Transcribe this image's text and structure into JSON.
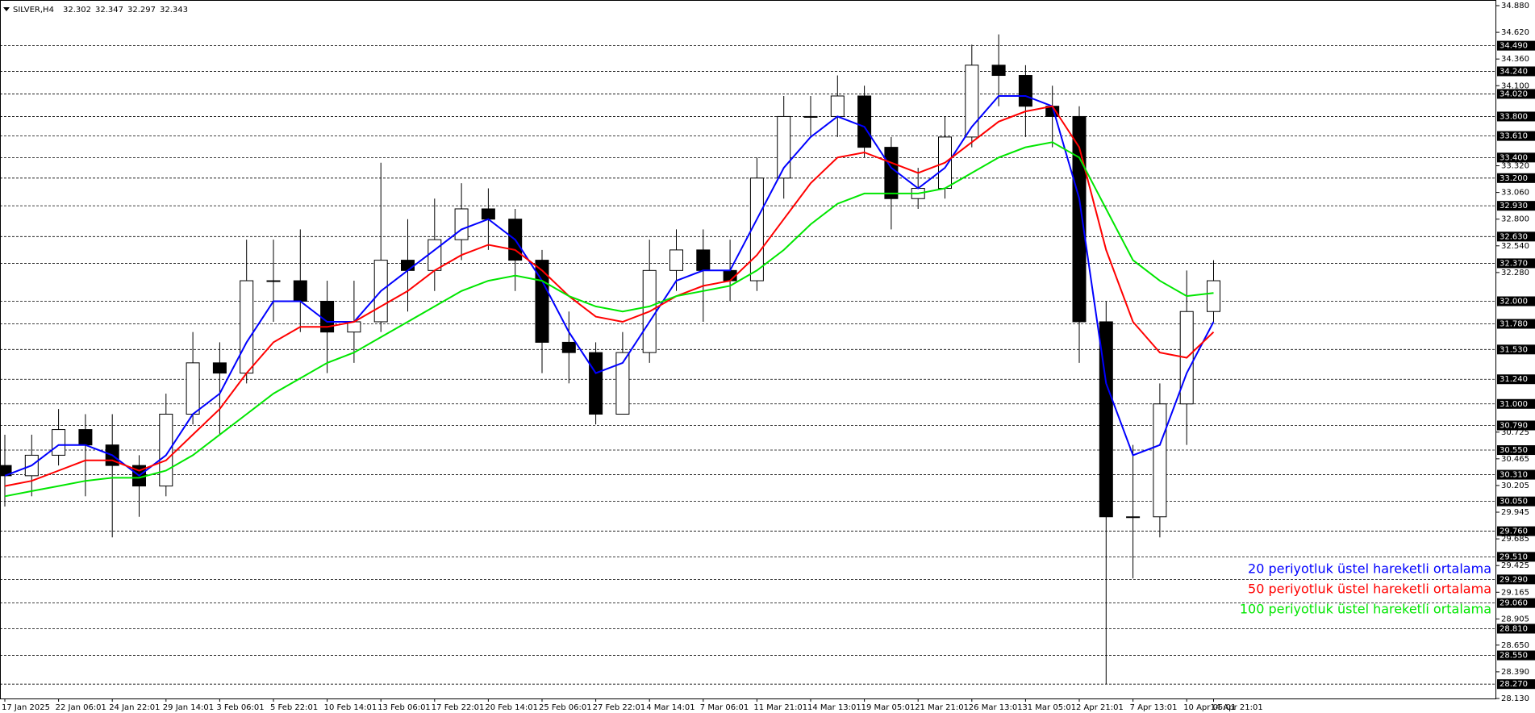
{
  "chart_data": {
    "type": "candlestick",
    "title": "SILVER,H4",
    "quote": [
      32.302,
      32.347,
      32.297,
      32.343
    ],
    "categories": [
      "17 Jan 2025",
      null,
      "22 Jan 06:01",
      null,
      "24 Jan 22:01",
      null,
      "29 Jan 14:01",
      null,
      "3 Feb 06:01",
      null,
      "5 Feb 22:01",
      null,
      "10 Feb 14:01",
      null,
      "13 Feb 06:01",
      null,
      "17 Feb 22:01",
      null,
      "20 Feb 14:01",
      null,
      "25 Feb 06:01",
      null,
      "27 Feb 22:01",
      null,
      "4 Mar 14:01",
      null,
      "7 Mar 06:01",
      null,
      "11 Mar 21:01",
      null,
      "14 Mar 13:01",
      null,
      "19 Mar 05:01",
      null,
      "21 Mar 21:01",
      null,
      "26 Mar 13:01",
      null,
      "31 Mar 05:01",
      null,
      "2 Apr 21:01",
      null,
      "7 Apr 13:01",
      null,
      "10 Apr 05:01",
      "14 Apr 21:01"
    ],
    "open": [
      30.4,
      30.3,
      30.5,
      30.75,
      30.6,
      30.4,
      30.2,
      30.9,
      31.4,
      31.3,
      32.2,
      32.2,
      32.0,
      31.7,
      31.8,
      32.4,
      32.3,
      32.6,
      32.9,
      32.8,
      32.4,
      31.6,
      31.5,
      30.9,
      31.5,
      32.3,
      32.5,
      32.3,
      32.2,
      33.2,
      33.8,
      33.8,
      34.0,
      33.5,
      33.0,
      33.1,
      33.6,
      34.3,
      34.2,
      33.9,
      33.8,
      31.8,
      29.9,
      29.9,
      31.0,
      31.9
    ],
    "high": [
      30.7,
      30.7,
      30.95,
      30.9,
      30.9,
      30.5,
      31.1,
      31.7,
      31.6,
      32.6,
      32.6,
      32.7,
      32.2,
      32.2,
      33.35,
      32.8,
      33.0,
      33.15,
      33.1,
      32.9,
      32.5,
      31.9,
      31.6,
      31.7,
      32.6,
      32.7,
      32.7,
      32.6,
      33.4,
      34.0,
      34.0,
      34.2,
      34.1,
      33.6,
      33.3,
      33.8,
      34.5,
      34.6,
      34.3,
      34.1,
      33.9,
      32.0,
      30.6,
      31.2,
      32.3,
      32.4
    ],
    "low": [
      30.0,
      30.1,
      30.4,
      30.1,
      29.7,
      29.9,
      30.1,
      30.8,
      30.7,
      31.2,
      31.8,
      31.7,
      31.3,
      31.4,
      31.7,
      31.9,
      32.1,
      32.4,
      32.5,
      32.1,
      31.3,
      31.2,
      30.8,
      30.9,
      31.4,
      32.1,
      31.8,
      32.0,
      32.1,
      33.0,
      33.6,
      33.6,
      33.4,
      32.7,
      32.9,
      33.0,
      33.5,
      33.9,
      33.6,
      33.5,
      31.4,
      28.27,
      29.3,
      29.7,
      30.6,
      31.8
    ],
    "close": [
      30.3,
      30.5,
      30.75,
      30.6,
      30.4,
      30.2,
      30.9,
      31.4,
      31.3,
      32.2,
      32.2,
      32.0,
      31.7,
      31.8,
      32.4,
      32.3,
      32.6,
      32.9,
      32.8,
      32.4,
      31.6,
      31.5,
      30.9,
      31.5,
      32.3,
      32.5,
      32.3,
      32.2,
      33.2,
      33.8,
      33.8,
      34.0,
      33.5,
      33.0,
      33.1,
      33.6,
      34.3,
      34.2,
      33.9,
      33.8,
      31.8,
      29.9,
      29.9,
      31.0,
      31.9,
      32.2
    ],
    "series": [
      {
        "name": "20 periyotluk üstel hareketli ortalama",
        "color": "#0000ff",
        "values": [
          30.3,
          30.4,
          30.6,
          30.6,
          30.5,
          30.3,
          30.5,
          30.9,
          31.1,
          31.6,
          32.0,
          32.0,
          31.8,
          31.8,
          32.1,
          32.3,
          32.5,
          32.7,
          32.8,
          32.6,
          32.2,
          31.7,
          31.3,
          31.4,
          31.8,
          32.2,
          32.3,
          32.3,
          32.8,
          33.3,
          33.6,
          33.8,
          33.7,
          33.3,
          33.1,
          33.3,
          33.7,
          34.0,
          34.0,
          33.9,
          33.0,
          31.2,
          30.5,
          30.6,
          31.3,
          31.8
        ]
      },
      {
        "name": "50 periyotluk üstel hareketli ortalama",
        "color": "#ff0000",
        "values": [
          30.2,
          30.25,
          30.35,
          30.45,
          30.45,
          30.35,
          30.45,
          30.7,
          30.95,
          31.3,
          31.6,
          31.75,
          31.75,
          31.8,
          31.95,
          32.1,
          32.3,
          32.45,
          32.55,
          32.5,
          32.3,
          32.05,
          31.85,
          31.8,
          31.9,
          32.05,
          32.15,
          32.2,
          32.45,
          32.8,
          33.15,
          33.4,
          33.45,
          33.35,
          33.25,
          33.35,
          33.55,
          33.75,
          33.85,
          33.9,
          33.5,
          32.5,
          31.8,
          31.5,
          31.45,
          31.7
        ]
      },
      {
        "name": "100 periyotluk üstel hareketli ortalama",
        "color": "#00e600",
        "values": [
          30.1,
          30.15,
          30.2,
          30.25,
          30.28,
          30.28,
          30.35,
          30.5,
          30.7,
          30.9,
          31.1,
          31.25,
          31.4,
          31.5,
          31.65,
          31.8,
          31.95,
          32.1,
          32.2,
          32.25,
          32.2,
          32.05,
          31.95,
          31.9,
          31.95,
          32.05,
          32.1,
          32.15,
          32.3,
          32.5,
          32.75,
          32.95,
          33.05,
          33.05,
          33.05,
          33.1,
          33.25,
          33.4,
          33.5,
          33.55,
          33.4,
          32.9,
          32.4,
          32.2,
          32.05,
          32.08
        ]
      }
    ],
    "ylim": [
      28.13,
      34.88
    ],
    "yticks": [
      {
        "value": 34.88,
        "label": "34.880"
      },
      {
        "value": 34.62,
        "label": "34.620"
      },
      {
        "value": 34.36,
        "label": "34.360"
      },
      {
        "value": 34.1,
        "label": "34.100"
      },
      {
        "value": 33.32,
        "label": "33.320"
      },
      {
        "value": 33.06,
        "label": "33.060"
      },
      {
        "value": 32.8,
        "label": "32.800"
      },
      {
        "value": 32.54,
        "label": "32.540"
      },
      {
        "value": 32.28,
        "label": "32.280"
      },
      {
        "value": 30.725,
        "label": "30.725"
      },
      {
        "value": 30.465,
        "label": "30.465"
      },
      {
        "value": 30.205,
        "label": "30.205"
      },
      {
        "value": 29.945,
        "label": "29.945"
      },
      {
        "value": 29.685,
        "label": "29.685"
      },
      {
        "value": 29.425,
        "label": "29.425"
      },
      {
        "value": 29.165,
        "label": "29.165"
      },
      {
        "value": 28.905,
        "label": "28.905"
      },
      {
        "value": 28.65,
        "label": "28.650"
      },
      {
        "value": 28.39,
        "label": "28.390"
      },
      {
        "value": 28.13,
        "label": "28.130"
      }
    ],
    "levels": [
      {
        "value": 34.49,
        "label": "34.490"
      },
      {
        "value": 34.24,
        "label": "34.240"
      },
      {
        "value": 34.02,
        "label": "34.020"
      },
      {
        "value": 33.8,
        "label": "33.800"
      },
      {
        "value": 33.61,
        "label": "33.610"
      },
      {
        "value": 33.4,
        "label": "33.400"
      },
      {
        "value": 33.2,
        "label": "33.200"
      },
      {
        "value": 32.93,
        "label": "32.930"
      },
      {
        "value": 32.63,
        "label": "32.630"
      },
      {
        "value": 32.37,
        "label": "32.370"
      },
      {
        "value": 32.0,
        "label": "32.000"
      },
      {
        "value": 31.78,
        "label": "31.780"
      },
      {
        "value": 31.53,
        "label": "31.530"
      },
      {
        "value": 31.24,
        "label": "31.240"
      },
      {
        "value": 31.0,
        "label": "31.000"
      },
      {
        "value": 30.79,
        "label": "30.790"
      },
      {
        "value": 30.55,
        "label": "30.550"
      },
      {
        "value": 30.31,
        "label": "30.310"
      },
      {
        "value": 30.05,
        "label": "30.050"
      },
      {
        "value": 29.76,
        "label": "29.760"
      },
      {
        "value": 29.51,
        "label": "29.510"
      },
      {
        "value": 29.29,
        "label": "29.290"
      },
      {
        "value": 29.06,
        "label": "29.060"
      },
      {
        "value": 28.81,
        "label": "28.810"
      },
      {
        "value": 28.55,
        "label": "28.550"
      },
      {
        "value": 28.27,
        "label": "28.270"
      }
    ],
    "legend": "bottom-right"
  }
}
